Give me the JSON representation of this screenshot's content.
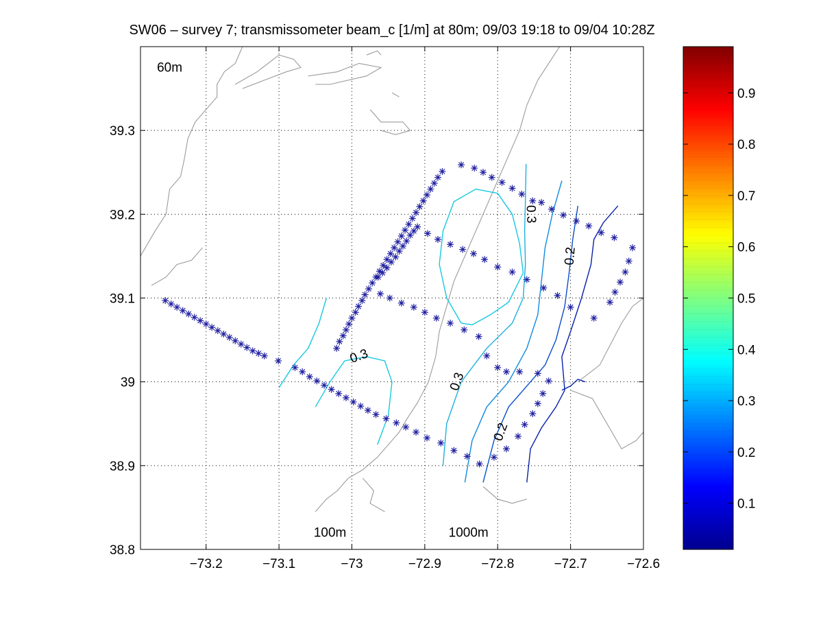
{
  "chart_data": {
    "type": "contour",
    "title": "SW06 – survey 7; transmissometer beam_c [1/m] at 80m; 09/03 19:18 to 09/04 10:28Z",
    "xlabel": "",
    "ylabel": "",
    "xlim": [
      -73.29,
      -72.6
    ],
    "ylim": [
      38.8,
      39.4
    ],
    "xticks": [
      -73.2,
      -73.1,
      -73.0,
      -72.9,
      -72.8,
      -72.7,
      -72.6
    ],
    "xtick_labels": [
      "−73.2",
      "−73.1",
      "−73",
      "−72.9",
      "−72.8",
      "−72.7",
      "−72.6"
    ],
    "yticks": [
      38.8,
      38.9,
      39.0,
      39.1,
      39.2,
      39.3
    ],
    "ytick_labels": [
      "38.8",
      "38.9",
      "39",
      "39.1",
      "39.2",
      "39.3"
    ],
    "grid": true,
    "colormap": "jet",
    "colorbar": {
      "range": [
        0.01,
        0.99
      ],
      "ticks": [
        0.1,
        0.2,
        0.3,
        0.4,
        0.5,
        0.6,
        0.7,
        0.8,
        0.9
      ],
      "tick_labels": [
        "0.1",
        "0.2",
        "0.3",
        "0.4",
        "0.5",
        "0.6",
        "0.7",
        "0.8",
        "0.9"
      ]
    },
    "depth_labels": [
      {
        "text": "60m",
        "lon": -73.25,
        "lat": 39.37
      },
      {
        "text": "100m",
        "lon": -73.03,
        "lat": 38.815
      },
      {
        "text": "1000m",
        "lon": -72.84,
        "lat": 38.815
      }
    ],
    "bathymetry": [
      [
        [
          -73.29,
          39.15
        ],
        [
          -73.27,
          39.18
        ],
        [
          -73.255,
          39.2
        ],
        [
          -73.25,
          39.23
        ],
        [
          -73.235,
          39.245
        ],
        [
          -73.23,
          39.265
        ],
        [
          -73.225,
          39.29
        ],
        [
          -73.215,
          39.31
        ],
        [
          -73.2,
          39.325
        ],
        [
          -73.185,
          39.34
        ],
        [
          -73.185,
          39.355
        ],
        [
          -73.175,
          39.37
        ],
        [
          -73.16,
          39.38
        ],
        [
          -73.15,
          39.4
        ]
      ],
      [
        [
          -73.275,
          39.115
        ],
        [
          -73.255,
          39.125
        ],
        [
          -73.24,
          39.14
        ],
        [
          -73.22,
          39.145
        ],
        [
          -73.205,
          39.16
        ]
      ],
      [
        [
          -73.16,
          39.355
        ],
        [
          -73.13,
          39.37
        ],
        [
          -73.1,
          39.39
        ],
        [
          -73.08,
          39.385
        ],
        [
          -73.07,
          39.375
        ],
        [
          -73.09,
          39.37
        ],
        [
          -73.12,
          39.36
        ],
        [
          -73.15,
          39.35
        ]
      ],
      [
        [
          -73.06,
          39.365
        ],
        [
          -73.02,
          39.37
        ],
        [
          -72.99,
          39.38
        ],
        [
          -72.96,
          39.375
        ],
        [
          -72.98,
          39.365
        ],
        [
          -73.03,
          39.355
        ],
        [
          -73.05,
          39.355
        ]
      ],
      [
        [
          -72.98,
          39.39
        ],
        [
          -72.965,
          39.395
        ],
        [
          -72.96,
          39.39
        ]
      ],
      [
        [
          -72.975,
          39.325
        ],
        [
          -72.96,
          39.31
        ],
        [
          -72.93,
          39.31
        ],
        [
          -72.92,
          39.3
        ],
        [
          -72.94,
          39.295
        ],
        [
          -72.96,
          39.3
        ]
      ],
      [
        [
          -72.945,
          39.345
        ],
        [
          -72.935,
          39.34
        ]
      ],
      [
        [
          -72.715,
          39.4
        ],
        [
          -72.73,
          39.38
        ],
        [
          -72.745,
          39.36
        ],
        [
          -72.76,
          39.33
        ],
        [
          -72.77,
          39.3
        ],
        [
          -72.785,
          39.27
        ],
        [
          -72.8,
          39.24
        ],
        [
          -72.815,
          39.21
        ],
        [
          -72.83,
          39.18
        ],
        [
          -72.845,
          39.15
        ],
        [
          -72.86,
          39.12
        ],
        [
          -72.87,
          39.09
        ],
        [
          -72.88,
          39.06
        ],
        [
          -72.885,
          39.03
        ],
        [
          -72.895,
          39.0
        ],
        [
          -72.91,
          38.975
        ],
        [
          -72.925,
          38.955
        ],
        [
          -72.935,
          38.94
        ],
        [
          -72.95,
          38.925
        ],
        [
          -72.965,
          38.91
        ],
        [
          -72.985,
          38.895
        ],
        [
          -73.005,
          38.885
        ],
        [
          -73.02,
          38.87
        ],
        [
          -73.035,
          38.86
        ],
        [
          -73.05,
          38.845
        ]
      ],
      [
        [
          -72.985,
          38.885
        ],
        [
          -72.97,
          38.87
        ],
        [
          -72.975,
          38.855
        ],
        [
          -72.955,
          38.845
        ]
      ],
      [
        [
          -72.82,
          38.875
        ],
        [
          -72.8,
          38.86
        ],
        [
          -72.78,
          38.855
        ],
        [
          -72.76,
          38.86
        ]
      ],
      [
        [
          -72.7,
          38.99
        ],
        [
          -72.67,
          38.98
        ],
        [
          -72.65,
          38.95
        ],
        [
          -72.63,
          38.92
        ],
        [
          -72.61,
          38.93
        ],
        [
          -72.6,
          38.94
        ]
      ],
      [
        [
          -72.69,
          39.0
        ],
        [
          -72.66,
          39.02
        ],
        [
          -72.645,
          39.045
        ],
        [
          -72.63,
          39.07
        ],
        [
          -72.615,
          39.09
        ],
        [
          -72.6,
          39.1
        ]
      ]
    ],
    "contours": [
      {
        "level": 0.3,
        "color": "#16c8e0",
        "points": [
          [
            -72.85,
            39.07
          ],
          [
            -72.87,
            39.1
          ],
          [
            -72.88,
            39.14
          ],
          [
            -72.875,
            39.18
          ],
          [
            -72.86,
            39.215
          ],
          [
            -72.83,
            39.23
          ],
          [
            -72.8,
            39.225
          ],
          [
            -72.78,
            39.2
          ],
          [
            -72.77,
            39.165
          ],
          [
            -72.765,
            39.13
          ],
          [
            -72.785,
            39.095
          ],
          [
            -72.81,
            39.08
          ],
          [
            -72.835,
            39.068
          ],
          [
            -72.85,
            39.07
          ]
        ]
      },
      {
        "level": 0.3,
        "color": "#16c8e0",
        "points": [
          [
            -73.1,
            38.993
          ],
          [
            -73.08,
            39.02
          ],
          [
            -73.06,
            39.04
          ],
          [
            -73.045,
            39.07
          ],
          [
            -73.035,
            39.1
          ]
        ]
      },
      {
        "level": 0.3,
        "color": "#16c8e0",
        "points": [
          [
            -73.05,
            38.97
          ],
          [
            -73.03,
            39.0
          ],
          [
            -73.01,
            39.025
          ],
          [
            -72.98,
            39.03
          ],
          [
            -72.955,
            39.025
          ],
          [
            -72.945,
            39.0
          ],
          [
            -72.95,
            38.96
          ],
          [
            -72.965,
            38.925
          ]
        ]
      },
      {
        "level": 0.3,
        "color": "#1ab0e0",
        "points": [
          [
            -72.875,
            38.9
          ],
          [
            -72.87,
            38.95
          ],
          [
            -72.85,
            39.0
          ],
          [
            -72.815,
            39.04
          ],
          [
            -72.78,
            39.07
          ],
          [
            -72.765,
            39.1
          ],
          [
            -72.762,
            39.14
          ],
          [
            -72.763,
            39.18
          ],
          [
            -72.762,
            39.215
          ],
          [
            -72.761,
            39.26
          ]
        ]
      },
      {
        "level": 0.25,
        "color": "#0e8ae0",
        "points": [
          [
            -72.845,
            38.88
          ],
          [
            -72.835,
            38.93
          ],
          [
            -72.815,
            38.97
          ],
          [
            -72.785,
            39.0
          ],
          [
            -72.76,
            39.04
          ],
          [
            -72.745,
            39.08
          ],
          [
            -72.74,
            39.12
          ],
          [
            -72.735,
            39.16
          ],
          [
            -72.725,
            39.2
          ],
          [
            -72.712,
            39.24
          ]
        ]
      },
      {
        "level": 0.2,
        "color": "#0a4ec8",
        "points": [
          [
            -72.82,
            38.88
          ],
          [
            -72.805,
            38.93
          ],
          [
            -72.785,
            38.97
          ],
          [
            -72.76,
            38.995
          ],
          [
            -72.735,
            39.02
          ],
          [
            -72.72,
            39.05
          ],
          [
            -72.708,
            39.09
          ],
          [
            -72.702,
            39.13
          ],
          [
            -72.697,
            39.17
          ],
          [
            -72.69,
            39.21
          ]
        ]
      },
      {
        "level": 0.15,
        "color": "#0820a8",
        "points": [
          [
            -72.76,
            38.88
          ],
          [
            -72.755,
            38.92
          ],
          [
            -72.74,
            38.945
          ],
          [
            -72.72,
            38.97
          ],
          [
            -72.708,
            38.99
          ],
          [
            -72.712,
            39.03
          ],
          [
            -72.7,
            39.06
          ],
          [
            -72.685,
            39.1
          ],
          [
            -72.672,
            39.14
          ],
          [
            -72.668,
            39.17
          ],
          [
            -72.655,
            39.19
          ],
          [
            -72.635,
            39.21
          ]
        ]
      },
      {
        "level": 0.15,
        "color": "#0820a8",
        "points": [
          [
            -72.712,
            38.99
          ],
          [
            -72.7,
            38.995
          ],
          [
            -72.69,
            39.003
          ],
          [
            -72.68,
            39.0
          ]
        ]
      }
    ],
    "contour_labels": [
      {
        "text": "0.3",
        "lon": -72.99,
        "lat": 39.03,
        "rotate": -20
      },
      {
        "text": "0.3",
        "lon": -72.855,
        "lat": 39.0,
        "rotate": -70
      },
      {
        "text": "0.3",
        "lon": -72.755,
        "lat": 39.2,
        "rotate": 88
      },
      {
        "text": "0.2",
        "lon": -72.7,
        "lat": 39.15,
        "rotate": -85
      },
      {
        "text": "0.2",
        "lon": -72.795,
        "lat": 38.94,
        "rotate": -70
      }
    ],
    "stations": [
      [
        -73.256,
        39.097
      ],
      [
        -73.248,
        39.093
      ],
      [
        -73.24,
        39.089
      ],
      [
        -73.232,
        39.085
      ],
      [
        -73.224,
        39.081
      ],
      [
        -73.216,
        39.077
      ],
      [
        -73.208,
        39.073
      ],
      [
        -73.2,
        39.069
      ],
      [
        -73.192,
        39.065
      ],
      [
        -73.184,
        39.061
      ],
      [
        -73.176,
        39.057
      ],
      [
        -73.168,
        39.053
      ],
      [
        -73.16,
        39.049
      ],
      [
        -73.152,
        39.045
      ],
      [
        -73.144,
        39.041
      ],
      [
        -73.136,
        39.037
      ],
      [
        -73.128,
        39.034
      ],
      [
        -73.12,
        39.031
      ],
      [
        -73.101,
        39.025
      ],
      [
        -73.078,
        39.017
      ],
      [
        -73.068,
        39.012
      ],
      [
        -73.058,
        39.006
      ],
      [
        -73.048,
        39.001
      ],
      [
        -73.038,
        38.996
      ],
      [
        -73.028,
        38.991
      ],
      [
        -73.018,
        38.986
      ],
      [
        -73.008,
        38.981
      ],
      [
        -72.998,
        38.976
      ],
      [
        -72.988,
        38.971
      ],
      [
        -72.978,
        38.966
      ],
      [
        -72.967,
        38.961
      ],
      [
        -72.953,
        38.956
      ],
      [
        -72.939,
        38.951
      ],
      [
        -72.926,
        38.946
      ],
      [
        -72.912,
        38.94
      ],
      [
        -72.897,
        38.933
      ],
      [
        -72.878,
        38.927
      ],
      [
        -72.86,
        38.918
      ],
      [
        -72.842,
        38.911
      ],
      [
        -72.825,
        38.902
      ],
      [
        -72.805,
        38.91
      ],
      [
        -72.788,
        38.92
      ],
      [
        -72.772,
        38.935
      ],
      [
        -72.763,
        38.949
      ],
      [
        -72.752,
        38.962
      ],
      [
        -72.745,
        38.974
      ],
      [
        -72.738,
        38.986
      ],
      [
        -72.73,
        39.001
      ],
      [
        -73.021,
        39.04
      ],
      [
        -73.017,
        39.048
      ],
      [
        -73.012,
        39.055
      ],
      [
        -73.008,
        39.062
      ],
      [
        -73.004,
        39.069
      ],
      [
        -73.0,
        39.076
      ],
      [
        -72.995,
        39.083
      ],
      [
        -72.991,
        39.09
      ],
      [
        -72.986,
        39.097
      ],
      [
        -72.982,
        39.104
      ],
      [
        -72.977,
        39.111
      ],
      [
        -72.972,
        39.118
      ],
      [
        -72.967,
        39.125
      ],
      [
        -72.962,
        39.132
      ],
      [
        -72.957,
        39.139
      ],
      [
        -72.952,
        39.146
      ],
      [
        -72.947,
        39.153
      ],
      [
        -72.942,
        39.16
      ],
      [
        -72.937,
        39.167
      ],
      [
        -72.932,
        39.174
      ],
      [
        -72.927,
        39.181
      ],
      [
        -72.922,
        39.188
      ],
      [
        -72.917,
        39.195
      ],
      [
        -72.912,
        39.202
      ],
      [
        -72.907,
        39.209
      ],
      [
        -72.902,
        39.216
      ],
      [
        -72.897,
        39.223
      ],
      [
        -72.892,
        39.23
      ],
      [
        -72.887,
        39.237
      ],
      [
        -72.882,
        39.244
      ],
      [
        -72.876,
        39.251
      ],
      [
        -72.964,
        39.125
      ],
      [
        -72.958,
        39.13
      ],
      [
        -72.952,
        39.136
      ],
      [
        -72.946,
        39.143
      ],
      [
        -72.94,
        39.149
      ],
      [
        -72.935,
        39.156
      ],
      [
        -72.93,
        39.162
      ],
      [
        -72.925,
        39.168
      ],
      [
        -72.92,
        39.175
      ],
      [
        -72.915,
        39.18
      ],
      [
        -72.85,
        39.259
      ],
      [
        -72.832,
        39.255
      ],
      [
        -72.82,
        39.25
      ],
      [
        -72.808,
        39.244
      ],
      [
        -72.794,
        39.238
      ],
      [
        -72.78,
        39.231
      ],
      [
        -72.767,
        39.224
      ],
      [
        -72.752,
        39.216
      ],
      [
        -72.74,
        39.214
      ],
      [
        -72.726,
        39.206
      ],
      [
        -72.71,
        39.199
      ],
      [
        -72.692,
        39.192
      ],
      [
        -72.675,
        39.186
      ],
      [
        -72.658,
        39.178
      ],
      [
        -72.64,
        39.172
      ],
      [
        -72.615,
        39.16
      ],
      [
        -72.62,
        39.144
      ],
      [
        -72.625,
        39.131
      ],
      [
        -72.632,
        39.119
      ],
      [
        -72.639,
        39.107
      ],
      [
        -72.646,
        39.095
      ],
      [
        -72.668,
        39.076
      ],
      [
        -72.91,
        39.185
      ],
      [
        -72.896,
        39.177
      ],
      [
        -72.882,
        39.17
      ],
      [
        -72.865,
        39.164
      ],
      [
        -72.848,
        39.158
      ],
      [
        -72.833,
        39.153
      ],
      [
        -72.818,
        39.146
      ],
      [
        -72.8,
        39.137
      ],
      [
        -72.78,
        39.131
      ],
      [
        -72.76,
        39.122
      ],
      [
        -72.737,
        39.112
      ],
      [
        -72.718,
        39.103
      ],
      [
        -72.7,
        39.089
      ],
      [
        -72.961,
        39.105
      ],
      [
        -72.948,
        39.1
      ],
      [
        -72.932,
        39.094
      ],
      [
        -72.915,
        39.089
      ],
      [
        -72.9,
        39.083
      ],
      [
        -72.884,
        39.076
      ],
      [
        -72.865,
        39.07
      ],
      [
        -72.846,
        39.062
      ],
      [
        -72.826,
        39.054
      ],
      [
        -72.815,
        39.031
      ],
      [
        -72.8,
        39.017
      ],
      [
        -72.788,
        39.012
      ],
      [
        -72.77,
        39.012
      ],
      [
        -72.745,
        39.01
      ]
    ]
  }
}
